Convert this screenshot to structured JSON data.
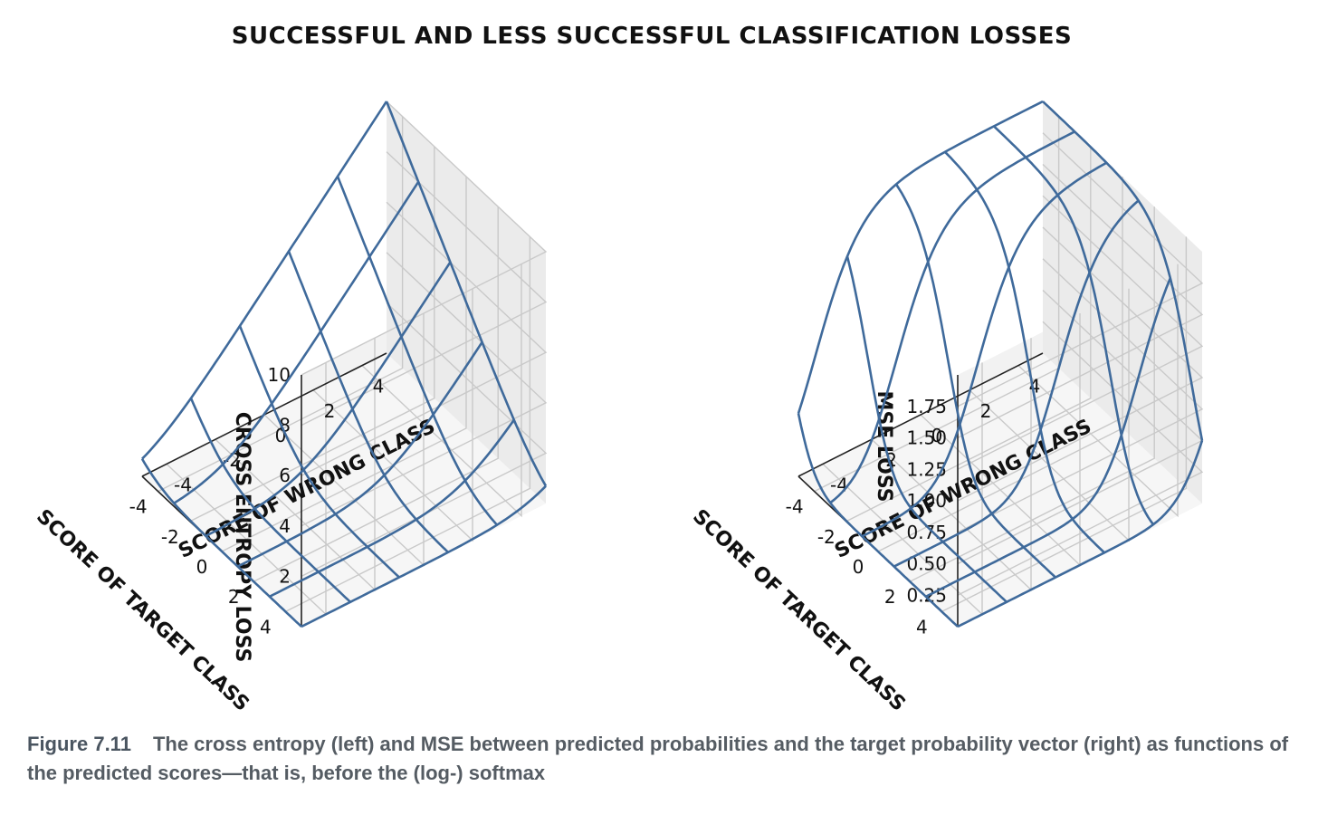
{
  "chart_data": {
    "title": "SUCCESSFUL AND LESS SUCCESSFUL CLASSIFICATION LOSSES",
    "panels": [
      {
        "type": "surface3d-wireframe",
        "function": "cross entropy",
        "zlabel": "CROSS ENTROPY LOSS",
        "xlabel": "SCORE OF TARGET CLASS",
        "ylabel": "SCORE OF WRONG CLASS",
        "xticks": [
          "4",
          "2",
          "0",
          "-2",
          "-4"
        ],
        "yticks": [
          "-4",
          "-2",
          "0",
          "2",
          "4"
        ],
        "zticks": [
          "2",
          "4",
          "6",
          "8",
          "10"
        ],
        "xlim": [
          -5,
          5
        ],
        "ylim": [
          -5,
          5
        ],
        "zlim": [
          0,
          10
        ],
        "grid_values": [
          -5,
          -3,
          -1,
          1,
          3,
          5
        ],
        "grid": true,
        "color": "#3f6a9b"
      },
      {
        "type": "surface3d-wireframe",
        "function": "mse",
        "zlabel": "MSE LOSS",
        "xlabel": "SCORE OF TARGET CLASS",
        "ylabel": "SCORE OF WRONG CLASS",
        "xticks": [
          "4",
          "2",
          "0",
          "-2",
          "-4"
        ],
        "yticks": [
          "-4",
          "-2",
          "0",
          "2",
          "4"
        ],
        "zticks": [
          "0.25",
          "0.50",
          "0.75",
          "1.00",
          "1.25",
          "1.50",
          "1.75"
        ],
        "xlim": [
          -5,
          5
        ],
        "ylim": [
          -5,
          5
        ],
        "zlim": [
          0,
          2
        ],
        "grid_values": [
          -5,
          -3,
          -1,
          1,
          3,
          5
        ],
        "grid": true,
        "color": "#3f6a9b"
      }
    ]
  },
  "caption": {
    "label": "Figure 7.11",
    "text": "The cross entropy (left) and MSE between predicted probabilities and the target probability vector (right) as functions of the predicted scores—that is, before the (log-) softmax"
  }
}
